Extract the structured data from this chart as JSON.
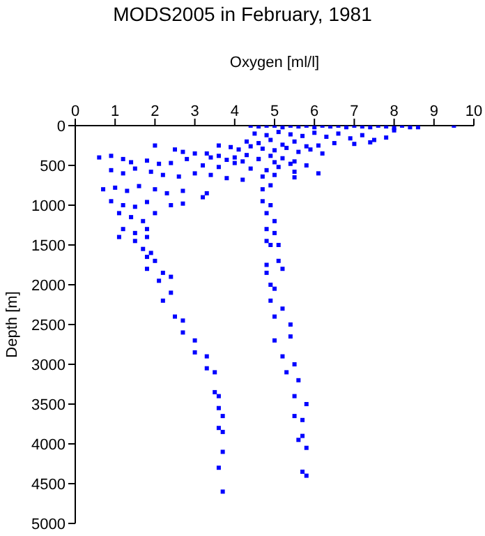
{
  "chart_data": {
    "type": "scatter",
    "title": "MODS2005 in February, 1981",
    "xlabel": "Oxygen [ml/l]",
    "ylabel": "Depth [m]",
    "xlim": [
      0,
      10
    ],
    "xticks": [
      0,
      1,
      2,
      3,
      4,
      5,
      6,
      7,
      8,
      9,
      10
    ],
    "ylim": [
      5000,
      0
    ],
    "yticks": [
      0,
      500,
      1000,
      1500,
      2000,
      2500,
      3000,
      3500,
      4000,
      4500,
      5000
    ],
    "marker": "square",
    "series": [
      {
        "color": "#0000ff",
        "x": [
          4.4,
          4.6,
          4.8,
          5.0,
          5.2,
          5.4,
          5.6,
          5.8,
          6.0,
          6.2,
          6.4,
          6.6,
          6.8,
          7.0,
          7.2,
          7.4,
          7.6,
          7.8,
          8.0,
          8.2,
          8.4,
          8.6,
          9.5,
          4.5,
          4.8,
          5.1,
          5.4,
          5.7,
          6.0,
          6.3,
          6.6,
          6.9,
          7.2,
          7.5,
          7.8,
          8.0,
          4.3,
          4.6,
          4.9,
          5.2,
          5.5,
          5.8,
          6.1,
          6.5,
          7.0,
          7.4,
          3.6,
          3.9,
          4.1,
          4.4,
          4.7,
          5.0,
          5.3,
          5.6,
          5.9,
          6.2,
          3.3,
          3.6,
          4.0,
          4.3,
          4.6,
          4.9,
          5.2,
          5.5,
          2.0,
          2.5,
          2.7,
          3.0,
          3.4,
          3.8,
          4.2,
          4.6,
          5.0,
          5.4,
          5.8,
          0.6,
          0.9,
          1.2,
          1.4,
          1.8,
          2.1,
          2.4,
          2.8,
          3.2,
          3.6,
          4.0,
          4.4,
          4.8,
          5.1,
          5.5,
          6.1,
          0.9,
          1.2,
          1.5,
          1.9,
          2.2,
          2.6,
          3.0,
          3.4,
          3.8,
          4.2,
          4.7,
          5.0,
          5.5,
          0.7,
          1.0,
          1.3,
          1.6,
          2.0,
          2.3,
          2.7,
          3.2,
          3.3,
          4.7,
          4.9,
          0.9,
          1.2,
          1.5,
          1.8,
          2.4,
          2.7,
          4.7,
          4.9,
          1.1,
          1.4,
          1.7,
          2.0,
          4.8,
          5.0,
          1.2,
          1.5,
          1.8,
          4.8,
          5.0,
          1.1,
          1.5,
          1.8,
          4.8,
          5.1,
          1.7,
          1.9,
          4.9,
          1.8,
          2.0,
          4.8,
          5.1,
          1.8,
          2.2,
          4.8,
          5.2,
          2.1,
          2.4,
          4.9,
          5.0,
          2.2,
          2.4,
          4.9,
          5.2,
          2.5,
          2.7,
          5.0,
          5.4,
          2.7,
          3.0,
          5.0,
          5.4,
          3.0,
          3.3,
          5.2,
          5.5,
          3.3,
          3.5,
          5.3,
          5.6,
          3.5,
          3.6,
          5.5,
          5.8,
          3.6,
          3.7,
          5.5,
          5.7,
          3.6,
          5.6,
          3.7,
          5.7,
          3.7,
          5.8,
          3.6,
          5.7,
          3.7,
          5.8
        ],
        "values": [
          0,
          10,
          0,
          0,
          20,
          0,
          10,
          0,
          20,
          0,
          10,
          0,
          20,
          0,
          10,
          20,
          0,
          10,
          30,
          0,
          20,
          20,
          0,
          100,
          120,
          80,
          110,
          130,
          90,
          140,
          100,
          160,
          120,
          180,
          150,
          60,
          200,
          220,
          180,
          240,
          200,
          260,
          250,
          220,
          230,
          210,
          250,
          270,
          300,
          260,
          290,
          310,
          280,
          330,
          300,
          350,
          350,
          380,
          400,
          370,
          420,
          380,
          410,
          450,
          250,
          300,
          330,
          350,
          400,
          430,
          450,
          420,
          460,
          480,
          500,
          400,
          380,
          420,
          460,
          440,
          480,
          470,
          420,
          500,
          520,
          470,
          540,
          560,
          520,
          580,
          600,
          560,
          600,
          540,
          580,
          620,
          640,
          600,
          620,
          660,
          680,
          640,
          620,
          650,
          800,
          780,
          820,
          760,
          800,
          850,
          820,
          900,
          850,
          800,
          750,
          950,
          1000,
          1020,
          960,
          1000,
          980,
          950,
          1000,
          1100,
          1150,
          1200,
          1100,
          1100,
          1200,
          1300,
          1350,
          1300,
          1300,
          1350,
          1400,
          1450,
          1400,
          1450,
          1500,
          1550,
          1600,
          1500,
          1650,
          1700,
          1750,
          1700,
          1800,
          1850,
          1850,
          1800,
          1950,
          1900,
          2000,
          2050,
          2200,
          2100,
          2200,
          2300,
          2400,
          2450,
          2400,
          2500,
          2600,
          2700,
          2700,
          2650,
          2850,
          2900,
          2900,
          3000,
          3050,
          3100,
          3100,
          3200,
          3350,
          3400,
          3400,
          3500,
          3550,
          3650,
          3650,
          3700,
          3800,
          3950,
          3850,
          3900,
          4100,
          4050,
          4300,
          4350,
          4600,
          4400
        ]
      }
    ]
  }
}
